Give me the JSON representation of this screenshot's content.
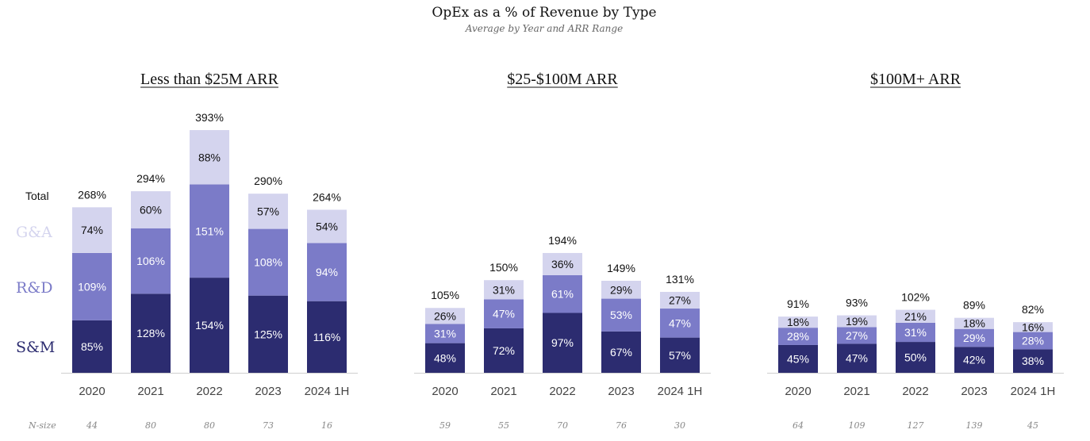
{
  "title": "OpEx as a % of Revenue by Type",
  "subtitle": "Average by Year and ARR Range",
  "legend": {
    "total": "Total",
    "items": [
      "G&A",
      "R&D",
      "S&M"
    ]
  },
  "nsize_label": "N-size",
  "colors": {
    "S&M": "#2c2c70",
    "R&D": "#7b7bc8",
    "G&A": "#d4d4ee",
    "axis": "#d0d0d0"
  },
  "chart_data": {
    "type": "bar",
    "stacked": true,
    "value_unit": "%",
    "series_order": [
      "S&M",
      "R&D",
      "G&A"
    ],
    "groups": [
      {
        "title": "Less than $25M ARR",
        "categories": [
          "2020",
          "2021",
          "2022",
          "2023",
          "2024 1H"
        ],
        "series": [
          {
            "name": "S&M",
            "values": [
              85,
              128,
              154,
              125,
              116
            ]
          },
          {
            "name": "R&D",
            "values": [
              109,
              106,
              151,
              108,
              94
            ]
          },
          {
            "name": "G&A",
            "values": [
              74,
              60,
              88,
              57,
              54
            ]
          }
        ],
        "totals": [
          268,
          294,
          393,
          290,
          264
        ],
        "n_size": [
          44,
          80,
          80,
          73,
          16
        ]
      },
      {
        "title": "$25-$100M ARR",
        "categories": [
          "2020",
          "2021",
          "2022",
          "2023",
          "2024 1H"
        ],
        "series": [
          {
            "name": "S&M",
            "values": [
              48,
              72,
              97,
              67,
              57
            ]
          },
          {
            "name": "R&D",
            "values": [
              31,
              47,
              61,
              53,
              47
            ]
          },
          {
            "name": "G&A",
            "values": [
              26,
              31,
              36,
              29,
              27
            ]
          }
        ],
        "totals": [
          105,
          150,
          194,
          149,
          131
        ],
        "n_size": [
          59,
          55,
          70,
          76,
          30
        ]
      },
      {
        "title": "$100M+ ARR",
        "categories": [
          "2020",
          "2021",
          "2022",
          "2023",
          "2024 1H"
        ],
        "series": [
          {
            "name": "S&M",
            "values": [
              45,
              47,
              50,
              42,
              38
            ]
          },
          {
            "name": "R&D",
            "values": [
              28,
              27,
              31,
              29,
              28
            ]
          },
          {
            "name": "G&A",
            "values": [
              18,
              19,
              21,
              18,
              16
            ]
          }
        ],
        "totals": [
          91,
          93,
          102,
          89,
          82
        ],
        "n_size": [
          64,
          109,
          127,
          139,
          45
        ]
      }
    ]
  }
}
